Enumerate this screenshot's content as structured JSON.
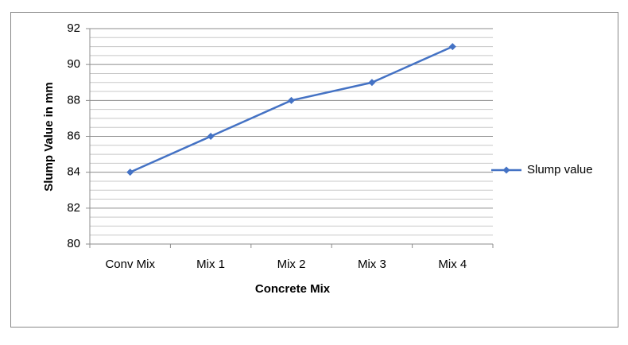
{
  "chart_data": {
    "type": "line",
    "x_label": "Concrete Mix",
    "y_label": "Slump Value in mm",
    "categories": [
      "Conv Mix",
      "Mix 1",
      "Mix 2",
      "Mix 3",
      "Mix 4"
    ],
    "series": [
      {
        "name": "Slump value",
        "color": "#4472c4",
        "values": [
          84,
          86,
          88,
          89,
          91
        ]
      }
    ],
    "ylim": [
      80,
      92
    ],
    "yticks": [
      80,
      82,
      84,
      86,
      88,
      90,
      92
    ],
    "grid": true,
    "minor_grid": true,
    "legend": "right"
  }
}
